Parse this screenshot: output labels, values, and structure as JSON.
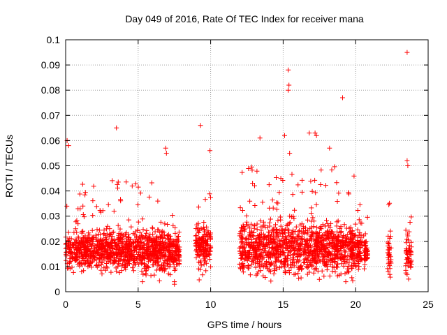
{
  "chart_data": {
    "type": "scatter",
    "title": "Day 049 of 2016, Rate Of TEC Index for receiver mana",
    "xlabel": "GPS time / hours",
    "ylabel": "ROTI / TECUs",
    "xlim": [
      0,
      25
    ],
    "ylim": [
      0,
      0.1
    ],
    "x_ticks": [
      0,
      5,
      10,
      15,
      20,
      25
    ],
    "x_tick_labels": [
      "0",
      "5",
      "10",
      "15",
      "20",
      "25"
    ],
    "y_ticks": [
      0,
      0.01,
      0.02,
      0.03,
      0.04,
      0.05,
      0.06,
      0.07,
      0.08,
      0.09,
      0.1
    ],
    "y_tick_labels": [
      "0",
      "0.01",
      "0.02",
      "0.03",
      "0.04",
      "0.05",
      "0.06",
      "0.07",
      "0.08",
      "0.09",
      "0.1"
    ],
    "grid": true,
    "marker": "+",
    "color": "#ff0000",
    "segments": [
      {
        "start": 0.0,
        "end": 7.85,
        "base": 0.016,
        "spread": 0.009,
        "max": 0.045
      },
      {
        "start": 8.95,
        "end": 10.0,
        "base": 0.018,
        "spread": 0.01,
        "max": 0.045
      },
      {
        "start": 12.0,
        "end": 20.45,
        "base": 0.017,
        "spread": 0.011,
        "max": 0.05
      },
      {
        "start": 20.55,
        "end": 20.85,
        "base": 0.016,
        "spread": 0.006,
        "max": 0.03
      },
      {
        "start": 22.2,
        "end": 22.45,
        "base": 0.014,
        "spread": 0.008,
        "max": 0.045
      },
      {
        "start": 23.45,
        "end": 23.85,
        "base": 0.015,
        "spread": 0.008,
        "max": 0.03
      }
    ],
    "peaks": [
      {
        "x": 0.1,
        "y": 0.06
      },
      {
        "x": 0.2,
        "y": 0.058
      },
      {
        "x": 3.5,
        "y": 0.065
      },
      {
        "x": 6.9,
        "y": 0.057
      },
      {
        "x": 6.95,
        "y": 0.055
      },
      {
        "x": 9.3,
        "y": 0.066
      },
      {
        "x": 9.95,
        "y": 0.056
      },
      {
        "x": 13.4,
        "y": 0.061
      },
      {
        "x": 15.1,
        "y": 0.062
      },
      {
        "x": 15.35,
        "y": 0.088
      },
      {
        "x": 15.4,
        "y": 0.082
      },
      {
        "x": 15.35,
        "y": 0.08
      },
      {
        "x": 15.45,
        "y": 0.055
      },
      {
        "x": 16.8,
        "y": 0.063
      },
      {
        "x": 17.2,
        "y": 0.063
      },
      {
        "x": 17.3,
        "y": 0.062
      },
      {
        "x": 18.2,
        "y": 0.057
      },
      {
        "x": 19.1,
        "y": 0.077
      },
      {
        "x": 23.55,
        "y": 0.095
      },
      {
        "x": 23.55,
        "y": 0.052
      },
      {
        "x": 23.6,
        "y": 0.05
      },
      {
        "x": 7.5,
        "y": 0.004
      },
      {
        "x": 7.5,
        "y": 0.003
      },
      {
        "x": 5.3,
        "y": 0.004
      },
      {
        "x": 23.65,
        "y": 0.005
      }
    ]
  }
}
